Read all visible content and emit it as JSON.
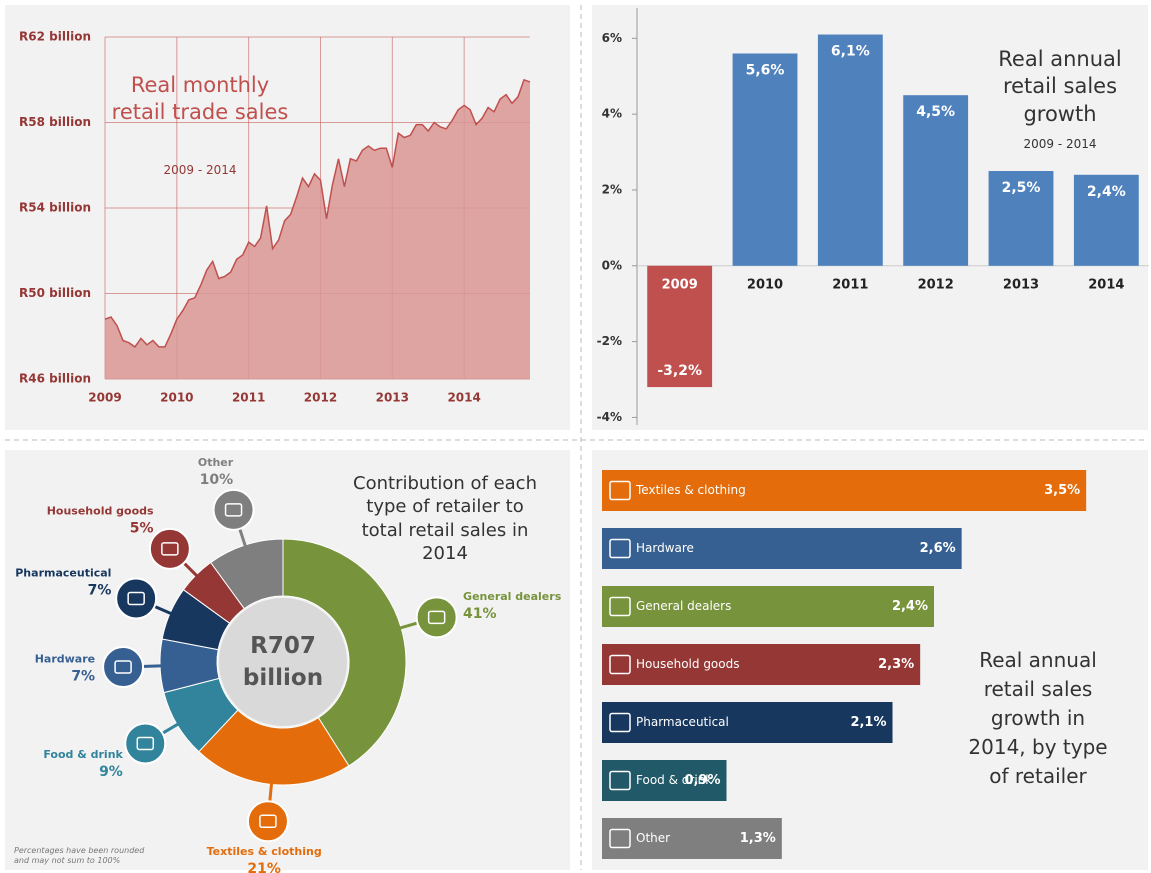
{
  "chart_data": [
    {
      "type": "area",
      "title": "Real monthly retail trade sales",
      "subtitle": "2009 - 2014",
      "categories": [
        "2009",
        null,
        null,
        null,
        null,
        null,
        null,
        null,
        null,
        null,
        null,
        null,
        "2010",
        null,
        null,
        null,
        null,
        null,
        null,
        null,
        null,
        null,
        null,
        null,
        "2011",
        null,
        null,
        null,
        null,
        null,
        null,
        null,
        null,
        null,
        null,
        null,
        "2012",
        null,
        null,
        null,
        null,
        null,
        null,
        null,
        null,
        null,
        null,
        null,
        "2013",
        null,
        null,
        null,
        null,
        null,
        null,
        null,
        null,
        null,
        null,
        null,
        "2014",
        null,
        null,
        null,
        null,
        null,
        null,
        null,
        null,
        null,
        null,
        null
      ],
      "values": [
        48.8,
        48.9,
        48.5,
        47.8,
        47.7,
        47.5,
        47.9,
        47.6,
        47.8,
        47.5,
        47.5,
        48.1,
        48.8,
        49.2,
        49.7,
        49.8,
        50.4,
        51.1,
        51.5,
        50.7,
        50.8,
        51.0,
        51.6,
        51.8,
        52.4,
        52.2,
        52.6,
        54.1,
        52.1,
        52.5,
        53.4,
        53.7,
        54.5,
        55.4,
        55.0,
        55.6,
        55.3,
        53.5,
        55.1,
        56.3,
        55.0,
        56.3,
        56.2,
        56.7,
        56.9,
        56.7,
        56.8,
        56.8,
        55.9,
        57.5,
        57.3,
        57.4,
        57.9,
        57.9,
        57.6,
        58.0,
        57.8,
        57.7,
        58.1,
        58.6,
        58.8,
        58.6,
        57.9,
        58.2,
        58.7,
        58.5,
        59.1,
        59.3,
        58.9,
        59.2,
        60.0,
        59.9
      ],
      "color": "#d99694",
      "line_color": "#c0504d",
      "ylim": [
        46,
        62
      ],
      "yticks": [
        {
          "value": 46,
          "label": "R46 billion"
        },
        {
          "value": 50,
          "label": "R50 billion"
        },
        {
          "value": 54,
          "label": "R54 billion"
        },
        {
          "value": 58,
          "label": "R58 billion"
        },
        {
          "value": 62,
          "label": "R62 billion"
        }
      ],
      "grid": true
    },
    {
      "type": "bar",
      "title": "Real annual retail sales growth",
      "subtitle": "2009 - 2014",
      "categories": [
        "2009",
        "2010",
        "2011",
        "2012",
        "2013",
        "2014"
      ],
      "values": [
        -3.2,
        5.6,
        6.1,
        4.5,
        2.5,
        2.4
      ],
      "value_labels": [
        "-3,2%",
        "5,6%",
        "6,1%",
        "4,5%",
        "2,5%",
        "2,4%"
      ],
      "colors": [
        "#c0504d",
        "#4f81bd",
        "#4f81bd",
        "#4f81bd",
        "#4f81bd",
        "#4f81bd"
      ],
      "ylim": [
        -4.2,
        6.8
      ],
      "yticks": [
        {
          "value": -4,
          "label": "-4%"
        },
        {
          "value": -2,
          "label": "-2%"
        },
        {
          "value": 0,
          "label": "0%"
        },
        {
          "value": 2,
          "label": "2%"
        },
        {
          "value": 4,
          "label": "4%"
        },
        {
          "value": 6,
          "label": "6%"
        }
      ],
      "grid": false
    },
    {
      "type": "pie",
      "title": "Contribution of each type of retailer to total retail sales in 2014",
      "categories": [
        "General dealers",
        "Textiles & clothing",
        "Food & drink",
        "Hardware",
        "Pharmaceutical",
        "Household goods",
        "Other"
      ],
      "values": [
        41,
        21,
        9,
        7,
        7,
        5,
        10
      ],
      "value_labels": [
        "41%",
        "21%",
        "9%",
        "7%",
        "7%",
        "5%",
        "10%"
      ],
      "colors": [
        "#77933c",
        "#e46c0a",
        "#31849b",
        "#376092",
        "#17375e",
        "#953735",
        "#7f7f7f"
      ],
      "center_label": "R707 billion",
      "note": "Percentages have been rounded and may not sum to 100%"
    },
    {
      "type": "bar",
      "orientation": "horizontal",
      "title": "Real annual retail sales growth in 2014, by type of retailer",
      "categories": [
        "Textiles & clothing",
        "Hardware",
        "General dealers",
        "Household goods",
        "Pharmaceutical",
        "Food & drink",
        "Other"
      ],
      "values": [
        3.5,
        2.6,
        2.4,
        2.3,
        2.1,
        0.9,
        1.3
      ],
      "value_labels": [
        "3,5%",
        "2,6%",
        "2,4%",
        "2,3%",
        "2,1%",
        "0,9%",
        "1,3%"
      ],
      "colors": [
        "#e46c0a",
        "#376092",
        "#77933c",
        "#953735",
        "#17375e",
        "#215968",
        "#7f7f7f"
      ],
      "xlim": [
        0,
        3.6
      ]
    }
  ]
}
